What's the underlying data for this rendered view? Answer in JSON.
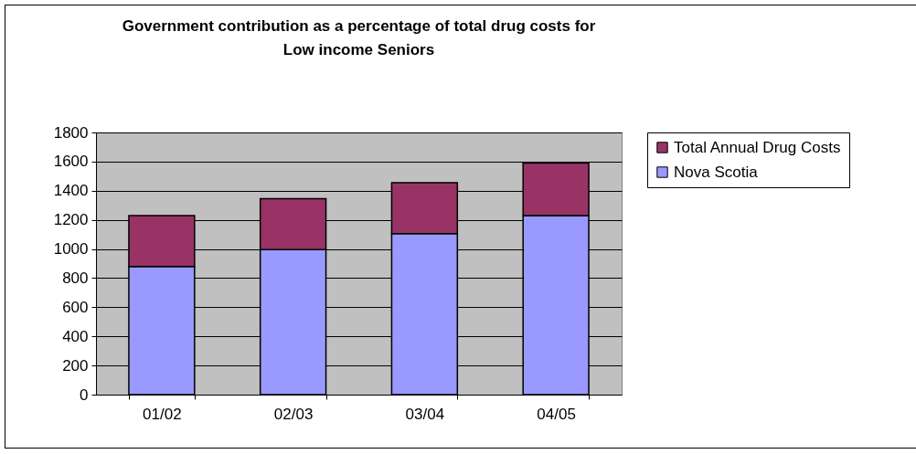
{
  "chart_data": {
    "type": "bar",
    "title": "Government contribution as a percentage of total drug costs for\nLow income Seniors",
    "categories": [
      "01/02",
      "02/03",
      "03/04",
      "04/05"
    ],
    "series": [
      {
        "name": "Nova Scotia",
        "color": "#9999ff",
        "values": [
          880,
          995,
          1105,
          1230
        ]
      },
      {
        "name": "Total Annual Drug Costs",
        "color": "#993366",
        "values": [
          350,
          350,
          350,
          360
        ]
      }
    ],
    "stacked": true,
    "ylim": [
      0,
      1800
    ],
    "yticks": [
      0,
      200,
      400,
      600,
      800,
      1000,
      1200,
      1400,
      1600,
      1800
    ],
    "grid": "y",
    "legend": "right"
  }
}
